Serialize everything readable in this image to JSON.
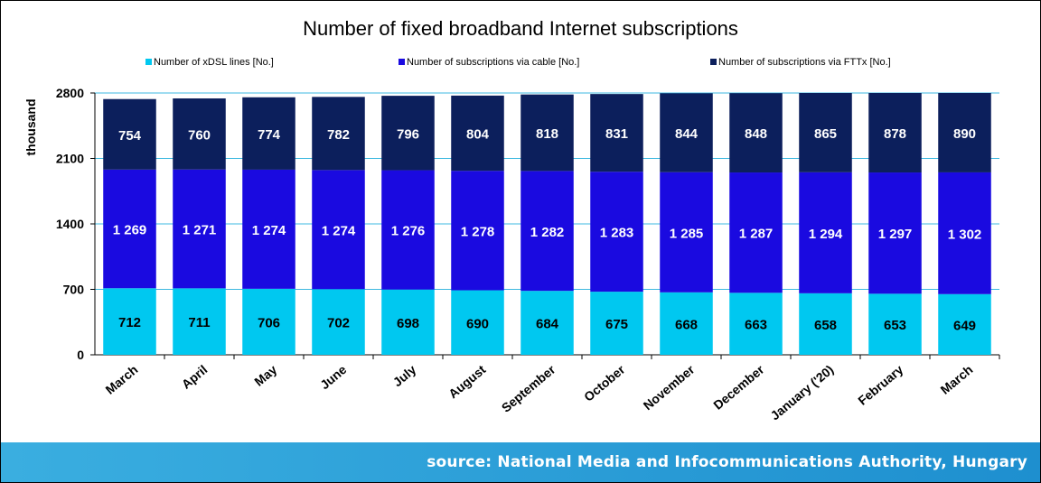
{
  "chart_data": {
    "type": "bar",
    "stacked": true,
    "title": "Number of fixed broadband Internet subscriptions",
    "ylabel": "thousand",
    "xlabel": "",
    "ylim": [
      0,
      2800
    ],
    "yticks": [
      "0",
      "700",
      "1400",
      "2100",
      "2800"
    ],
    "ytick_values": [
      0,
      700,
      1400,
      2100,
      2800
    ],
    "grid": true,
    "legend_position": "top",
    "categories": [
      "March",
      "April",
      "May",
      "June",
      "July",
      "August",
      "September",
      "October",
      "November",
      "December",
      "January ('20)",
      "February",
      "March"
    ],
    "series": [
      {
        "name": "Number of xDSL lines [No.]",
        "color": "#00c8f0",
        "values": [
          712,
          711,
          706,
          702,
          698,
          690,
          684,
          675,
          668,
          663,
          658,
          653,
          649
        ],
        "labels": [
          "712",
          "711",
          "706",
          "702",
          "698",
          "690",
          "684",
          "675",
          "668",
          "663",
          "658",
          "653",
          "649"
        ]
      },
      {
        "name": "Number of subscriptions via cable [No.]",
        "color": "#1a0ae0",
        "values": [
          1269,
          1271,
          1274,
          1274,
          1276,
          1278,
          1282,
          1283,
          1285,
          1287,
          1294,
          1297,
          1302
        ],
        "labels": [
          "1 269",
          "1 271",
          "1 274",
          "1 274",
          "1 276",
          "1 278",
          "1 282",
          "1 283",
          "1 285",
          "1 287",
          "1 294",
          "1 297",
          "1 302"
        ]
      },
      {
        "name": "Number of subscriptions via FTTx [No.]",
        "color": "#0c1f5c",
        "values": [
          754,
          760,
          774,
          782,
          796,
          804,
          818,
          831,
          844,
          848,
          865,
          878,
          890
        ],
        "labels": [
          "754",
          "760",
          "774",
          "782",
          "796",
          "804",
          "818",
          "831",
          "844",
          "848",
          "865",
          "878",
          "890"
        ]
      }
    ]
  },
  "footer": {
    "source": "source: National Media and Infocommunications Authority, Hungary"
  }
}
